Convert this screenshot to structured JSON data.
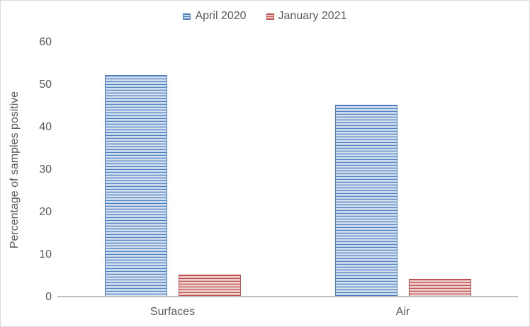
{
  "chart_data": {
    "type": "bar",
    "categories": [
      "Surfaces",
      "Air"
    ],
    "series": [
      {
        "name": "April 2020",
        "color": "#4f81bd",
        "values": [
          52,
          45
        ]
      },
      {
        "name": "January 2021",
        "color": "#c0504d",
        "values": [
          5,
          4
        ]
      }
    ],
    "title": "",
    "xlabel": "",
    "ylabel": "Percentage of samples positive",
    "ylim": [
      0,
      60
    ],
    "yticks": [
      0,
      10,
      20,
      30,
      40,
      50,
      60
    ],
    "grid": false,
    "legend_position": "top",
    "bar_fill_style": "horizontal-stripes"
  },
  "colors": {
    "background": "#ffffff",
    "chart_border": "#d9d9d9",
    "axis_line": "#bfbfbf",
    "label_text": "#595959",
    "series_april_2020": "#4f81bd",
    "series_january_2021": "#c0504d"
  }
}
